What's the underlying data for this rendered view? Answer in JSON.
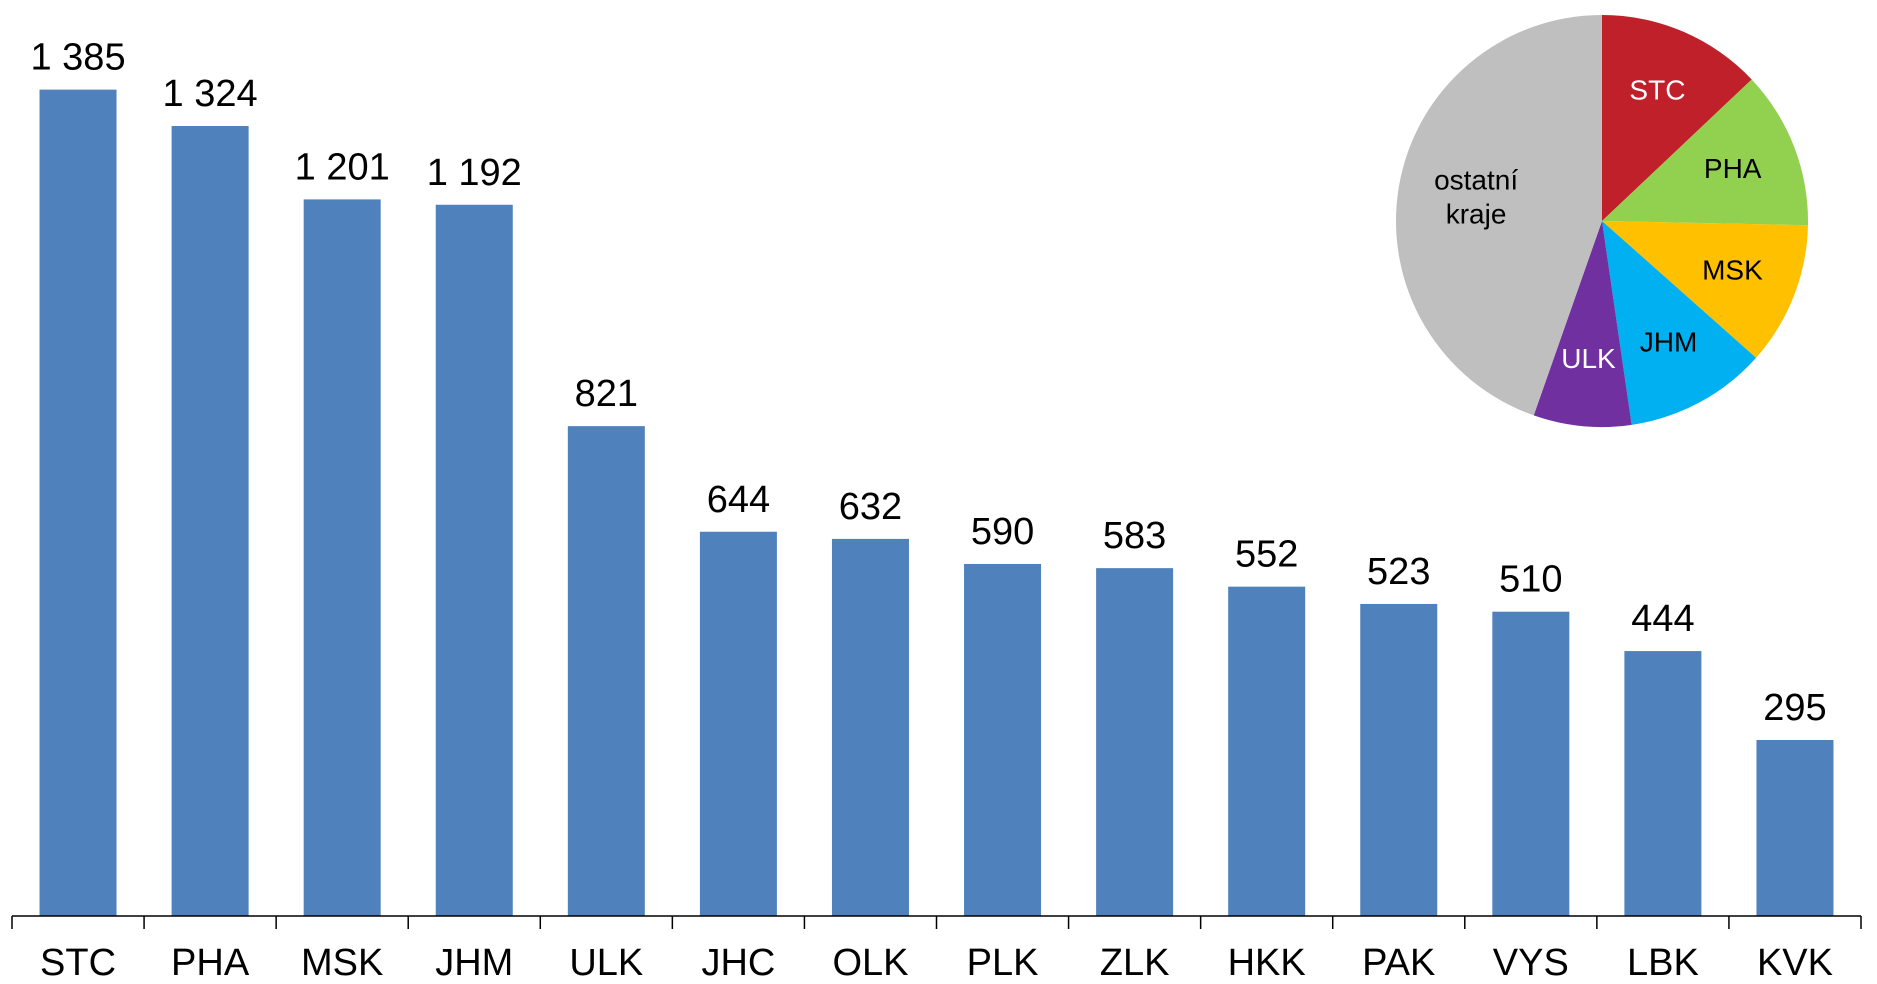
{
  "chart_data": [
    {
      "type": "bar",
      "categories": [
        "STC",
        "PHA",
        "MSK",
        "JHM",
        "ULK",
        "JHC",
        "OLK",
        "PLK",
        "ZLK",
        "HKK",
        "PAK",
        "VYS",
        "LBK",
        "KVK"
      ],
      "values": [
        1385,
        1324,
        1201,
        1192,
        821,
        644,
        632,
        590,
        583,
        552,
        523,
        510,
        444,
        295
      ],
      "value_labels": [
        "1 385",
        "1 324",
        "1 201",
        "1 192",
        "821",
        "644",
        "632",
        "590",
        "583",
        "552",
        "523",
        "510",
        "444",
        "295"
      ],
      "color": "#4f81bd",
      "ylim": [
        0,
        1500
      ]
    },
    {
      "type": "pie",
      "categories": [
        "STC",
        "PHA",
        "MSK",
        "JHM",
        "ULK",
        "ostatní kraje"
      ],
      "values": [
        1385,
        1324,
        1201,
        1192,
        821,
        4773
      ],
      "colors": [
        "#c0202a",
        "#92d050",
        "#ffc000",
        "#00b0f0",
        "#7030a0",
        "#bfbfbf"
      ],
      "label_colors": [
        "#ffffff",
        "#000000",
        "#000000",
        "#000000",
        "#ffffff",
        "#000000"
      ]
    }
  ]
}
